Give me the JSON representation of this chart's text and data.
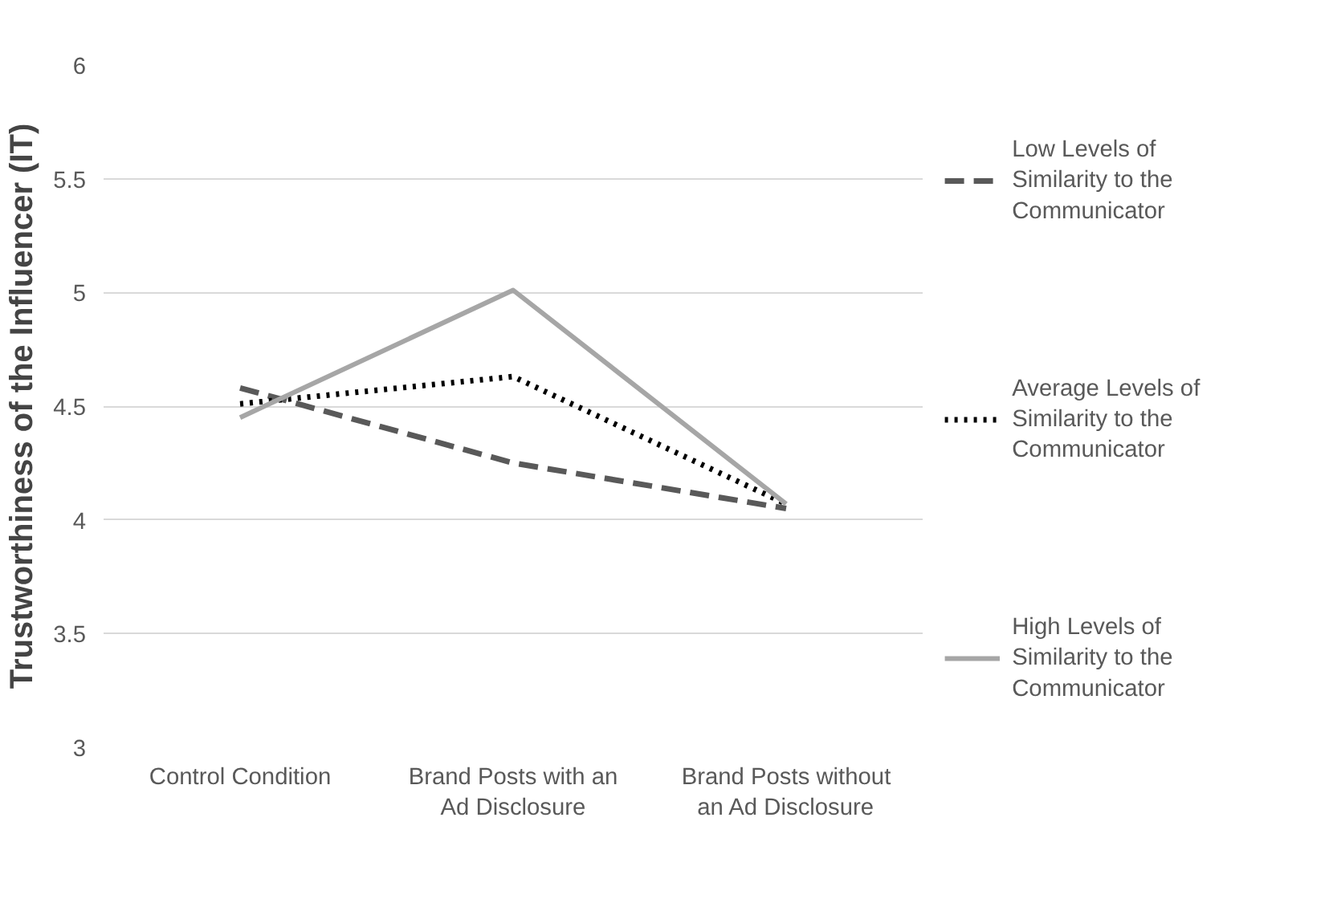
{
  "chart_data": {
    "type": "line",
    "ylabel": "Trustworthiness of the Influencer (IT)",
    "categories": [
      "Control Condition",
      "Brand Posts with an Ad Disclosure",
      "Brand Posts without an Ad Disclosure"
    ],
    "series": [
      {
        "name": "Low Levels of Similarity to the Communicator",
        "color": "#595959",
        "line_style": "dashed",
        "values": [
          4.58,
          4.25,
          4.05
        ]
      },
      {
        "name": "Average Levels of Similarity to the Communicator",
        "color": "#000000",
        "line_style": "dotted",
        "values": [
          4.51,
          4.63,
          4.07
        ]
      },
      {
        "name": "High Levels of Similarity to the Communicator",
        "color": "#a6a6a6",
        "line_style": "solid",
        "values": [
          4.45,
          5.01,
          4.07
        ]
      }
    ],
    "ylim": [
      3,
      6
    ],
    "yticks": [
      3,
      3.5,
      4,
      4.5,
      5,
      5.5,
      6
    ],
    "grid": "y",
    "legend": "right",
    "marker": "none"
  }
}
